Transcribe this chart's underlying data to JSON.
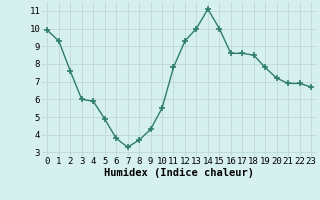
{
  "x": [
    0,
    1,
    2,
    3,
    4,
    5,
    6,
    7,
    8,
    9,
    10,
    11,
    12,
    13,
    14,
    15,
    16,
    17,
    18,
    19,
    20,
    21,
    22,
    23
  ],
  "y": [
    9.9,
    9.3,
    7.6,
    6.0,
    5.9,
    4.9,
    3.8,
    3.3,
    3.7,
    4.3,
    5.5,
    7.8,
    9.3,
    10.0,
    11.1,
    10.0,
    8.6,
    8.6,
    8.5,
    7.8,
    7.2,
    6.9,
    6.9,
    6.7
  ],
  "line_color": "#2e7d6e",
  "marker": "+",
  "marker_size": 4,
  "bg_color": "#d6f0ef",
  "grid_color": "#c0d8d8",
  "xlabel": "Humidex (Indice chaleur)",
  "ylim": [
    2.8,
    11.5
  ],
  "yticks": [
    3,
    4,
    5,
    6,
    7,
    8,
    9,
    10,
    11
  ],
  "xlim": [
    -0.5,
    23.5
  ],
  "xticks": [
    0,
    1,
    2,
    3,
    4,
    5,
    6,
    7,
    8,
    9,
    10,
    11,
    12,
    13,
    14,
    15,
    16,
    17,
    18,
    19,
    20,
    21,
    22,
    23
  ],
  "xlabel_fontsize": 7.5,
  "tick_fontsize": 6.5
}
